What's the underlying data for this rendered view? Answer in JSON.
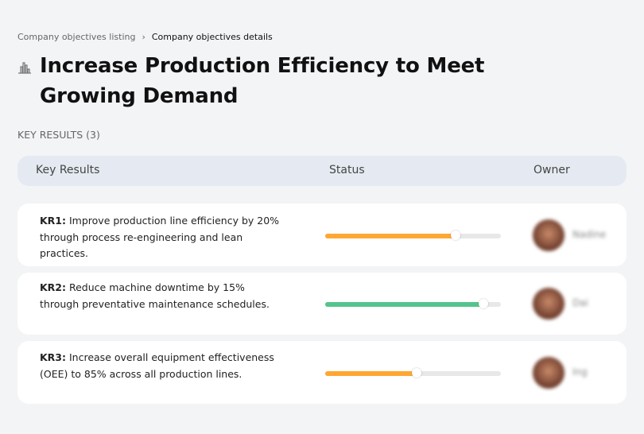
{
  "breadcrumb": {
    "items": [
      "Company objectives listing",
      "Company objectives details"
    ],
    "separator": "›"
  },
  "objective": {
    "icon": "building-chart-icon",
    "title": "Increase Production Efficiency to Meet Growing Demand"
  },
  "key_results_label": "KEY RESULTS (3)",
  "table": {
    "headers": {
      "key_results": "Key Results",
      "status": "Status",
      "owner": "Owner"
    },
    "rows": [
      {
        "id": "KR1:",
        "text": " Improve production line efficiency by 20% through process re-engineering and lean practices.",
        "progress": 74,
        "color": "#ffa733",
        "owner": "Nadine"
      },
      {
        "id": "KR2:",
        "text": " Reduce machine downtime by 15% through preventative maintenance schedules.",
        "progress": 90,
        "color": "#55c48c",
        "owner": "Dai"
      },
      {
        "id": "KR3:",
        "text": " Increase overall equipment effectiveness (OEE) to 85% across all production lines.",
        "progress": 52,
        "color": "#ffa733",
        "owner": "Ing"
      }
    ]
  }
}
